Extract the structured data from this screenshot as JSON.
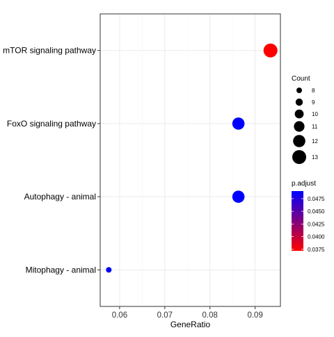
{
  "chart_data": {
    "type": "scatter",
    "title": "",
    "xlabel": "GeneRatio",
    "ylabel": "",
    "xlim": [
      0.0557,
      0.0956
    ],
    "x_ticks": [
      0.06,
      0.07,
      0.08,
      0.09
    ],
    "x_tick_labels": [
      "0.06",
      "0.07",
      "0.08",
      "0.09"
    ],
    "categories": [
      "mTOR signaling pathway",
      "FoxO signaling pathway",
      "Autophagy - animal",
      "Mitophagy - animal"
    ],
    "points": [
      {
        "category": "mTOR signaling pathway",
        "gene_ratio": 0.0934,
        "count": 13,
        "p_adjust": 0.0372
      },
      {
        "category": "FoxO signaling pathway",
        "gene_ratio": 0.0863,
        "count": 12,
        "p_adjust": 0.049
      },
      {
        "category": "Autophagy - animal",
        "gene_ratio": 0.0863,
        "count": 12,
        "p_adjust": 0.049
      },
      {
        "category": "Mitophagy - animal",
        "gene_ratio": 0.0576,
        "count": 8,
        "p_adjust": 0.049
      }
    ],
    "size_legend": {
      "title": "Count",
      "values": [
        8,
        9,
        10,
        11,
        12,
        13
      ]
    },
    "color_legend": {
      "title": "p.adjust",
      "ticks": [
        0.0475,
        0.045,
        0.0425,
        0.04,
        0.0375
      ],
      "tick_labels": [
        "0.0475",
        "0.0450",
        "0.0425",
        "0.0400",
        "0.0375"
      ],
      "range": [
        0.0372,
        0.049
      ],
      "low_color": "#FF0000",
      "high_color": "#0000FF"
    },
    "grid": true,
    "legend_position": "right"
  }
}
